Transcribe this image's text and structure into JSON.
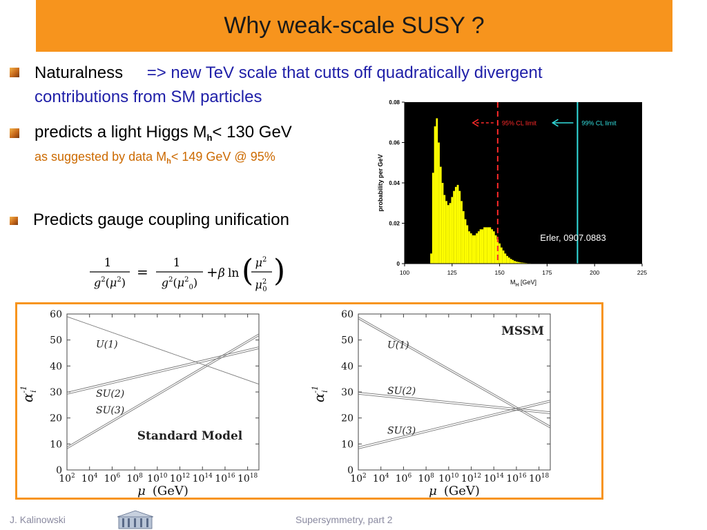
{
  "slide": {
    "title": "Why weak-scale SUSY ?",
    "bullet1_label": "Naturalness",
    "bullet1_text_a": "=> new TeV scale that cutts off quadratically divergent",
    "bullet1_text_b": "contributions from SM particles",
    "bullet2_text": "predicts a light Higgs  M",
    "bullet2_sub": "h",
    "bullet2_tail": "< 130 GeV",
    "bullet2_note_a": "as suggested by data  M",
    "bullet2_note_sub": "h",
    "bullet2_note_b": "< 149 GeV @ 95%",
    "bullet3_text": "Predicts gauge coupling unification",
    "footer_left": "J. Kalinowski",
    "footer_center": "Supersymmetry, part 2"
  },
  "chart_data": [
    {
      "type": "bar",
      "name": "higgs-probability",
      "xlabel": "M",
      "xlabel_sub": "H",
      "xlabel_unit": " [GeV]",
      "ylabel": "probability per GeV",
      "xlim": [
        100,
        225
      ],
      "ylim": [
        0,
        0.08
      ],
      "xticks": [
        100,
        125,
        150,
        175,
        200,
        225
      ],
      "yticks": [
        0,
        0.02,
        0.04,
        0.06,
        0.08
      ],
      "ytick_labels": [
        "0",
        "0.02",
        "0.04",
        "0.06",
        "0.08"
      ],
      "bar_color": "#ffff00",
      "background": "#000000",
      "x": [
        114,
        115,
        116,
        117,
        118,
        119,
        120,
        121,
        122,
        123,
        124,
        125,
        126,
        127,
        128,
        129,
        130,
        131,
        132,
        133,
        134,
        135,
        136,
        137,
        138,
        139,
        140,
        141,
        142,
        143,
        144,
        145,
        146,
        147,
        148,
        149,
        150,
        151,
        152,
        153,
        154,
        155,
        156,
        157,
        158,
        159,
        160,
        161,
        162,
        163,
        164,
        165,
        166,
        167,
        168,
        169,
        170
      ],
      "values": [
        0.005,
        0.045,
        0.068,
        0.072,
        0.06,
        0.048,
        0.04,
        0.034,
        0.031,
        0.029,
        0.03,
        0.033,
        0.036,
        0.038,
        0.039,
        0.036,
        0.031,
        0.026,
        0.022,
        0.019,
        0.016,
        0.015,
        0.014,
        0.014,
        0.015,
        0.016,
        0.017,
        0.017,
        0.018,
        0.018,
        0.018,
        0.018,
        0.017,
        0.016,
        0.014,
        0.012,
        0.01,
        0.008,
        0.0065,
        0.005,
        0.0038,
        0.003,
        0.0023,
        0.0018,
        0.0013,
        0.001,
        0.0008,
        0.0006,
        0.0005,
        0.0004,
        0.0003,
        0.0002,
        0.0002,
        0.0001,
        0.0001,
        0.0001,
        0.0001
      ],
      "lines": [
        {
          "label": "95% CL limit",
          "x": 149,
          "color": "#ff2a2a",
          "dashed": true,
          "arrow": "left"
        },
        {
          "label": "99% CL limit",
          "x": 191,
          "color": "#33e0e0",
          "dashed": false,
          "arrow": "left"
        }
      ],
      "annotation": "Erler, 0907.0883"
    },
    {
      "type": "line",
      "name": "standard-model",
      "title": "Standard Model",
      "xlabel": "μ",
      "xlabel_unit": "(GeV)",
      "ylabel": "α",
      "ylabel_sup": "-1",
      "ylabel_sub": "i",
      "xlim": [
        2,
        19
      ],
      "ylim": [
        0,
        60
      ],
      "xticks": [
        2,
        4,
        6,
        8,
        10,
        12,
        14,
        16,
        18
      ],
      "yticks": [
        0,
        10,
        20,
        30,
        40,
        50,
        60
      ],
      "series": [
        {
          "name": "U(1)",
          "x": [
            2,
            19
          ],
          "y": [
            59,
            33
          ],
          "double": false
        },
        {
          "name": "SU(2)",
          "x": [
            2,
            19
          ],
          "y": [
            29.5,
            47
          ],
          "double": true
        },
        {
          "name": "SU(3)",
          "x": [
            2,
            19
          ],
          "y": [
            8.5,
            52
          ],
          "double": true
        }
      ]
    },
    {
      "type": "line",
      "name": "mssm",
      "title": "MSSM",
      "xlabel": "μ",
      "xlabel_unit": "(GeV)",
      "ylabel": "α",
      "ylabel_sup": "-1",
      "ylabel_sub": "i",
      "xlim": [
        2,
        19
      ],
      "ylim": [
        0,
        60
      ],
      "xticks": [
        2,
        4,
        6,
        8,
        10,
        12,
        14,
        16,
        18
      ],
      "yticks": [
        0,
        10,
        20,
        30,
        40,
        50,
        60
      ],
      "series": [
        {
          "name": "U(1)",
          "x": [
            2,
            19
          ],
          "y": [
            58.5,
            16.5
          ],
          "double": true
        },
        {
          "name": "SU(2)",
          "x": [
            2,
            19
          ],
          "y": [
            29.5,
            22
          ],
          "double": true
        },
        {
          "name": "SU(3)",
          "x": [
            2,
            19
          ],
          "y": [
            8.5,
            26.5
          ],
          "double": true
        }
      ]
    }
  ]
}
